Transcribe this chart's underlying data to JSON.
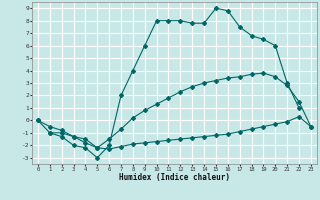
{
  "xlabel": "Humidex (Indice chaleur)",
  "xlim": [
    -0.5,
    23.5
  ],
  "ylim": [
    -3.5,
    9.5
  ],
  "xticks": [
    0,
    1,
    2,
    3,
    4,
    5,
    6,
    7,
    8,
    9,
    10,
    11,
    12,
    13,
    14,
    15,
    16,
    17,
    18,
    19,
    20,
    21,
    22,
    23
  ],
  "yticks": [
    -3,
    -2,
    -1,
    0,
    1,
    2,
    3,
    4,
    5,
    6,
    7,
    8,
    9
  ],
  "bg_color": "#c8e8e8",
  "grid_color": "#ffffff",
  "line_color": "#006666",
  "lines": [
    {
      "x": [
        0,
        1,
        2,
        3,
        4,
        5,
        6,
        7,
        8,
        9,
        10,
        11,
        12,
        13,
        14,
        15,
        16,
        17,
        18,
        19,
        20,
        21,
        22,
        23
      ],
      "y": [
        0,
        -1,
        -1,
        -1.3,
        -1.8,
        -2.2,
        -2.3,
        -2.1,
        -1.9,
        -1.8,
        -1.7,
        -1.6,
        -1.5,
        -1.4,
        -1.3,
        -1.2,
        -1.1,
        -0.9,
        -0.7,
        -0.5,
        -0.3,
        -0.1,
        0.3,
        -0.5
      ]
    },
    {
      "x": [
        0,
        1,
        2,
        3,
        4,
        5,
        6,
        7,
        8,
        9,
        10,
        11,
        12,
        13,
        14,
        15,
        16,
        17,
        18,
        19,
        20,
        21,
        22,
        23
      ],
      "y": [
        0,
        -0.5,
        -0.8,
        -1.3,
        -1.5,
        -2.2,
        -1.5,
        -0.7,
        0.2,
        0.8,
        1.3,
        1.8,
        2.3,
        2.7,
        3.0,
        3.2,
        3.4,
        3.5,
        3.7,
        3.8,
        3.5,
        2.8,
        1.5,
        -0.5
      ]
    },
    {
      "x": [
        1,
        2,
        3,
        4,
        5,
        6,
        7,
        8,
        9,
        10,
        11,
        12,
        13,
        14,
        15,
        16,
        17,
        18,
        19,
        20,
        21,
        22
      ],
      "y": [
        -1,
        -1.3,
        -2,
        -2.2,
        -3,
        -2,
        2,
        4,
        6,
        8,
        8,
        8,
        7.8,
        7.8,
        9,
        8.8,
        7.5,
        6.8,
        6.5,
        6,
        3,
        1
      ]
    }
  ]
}
